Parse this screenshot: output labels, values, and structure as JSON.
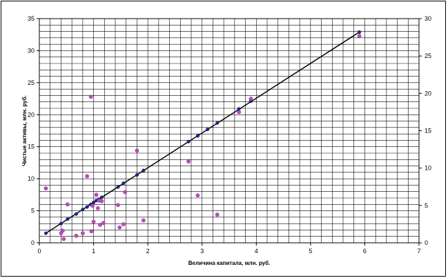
{
  "chart_data": {
    "type": "scatter",
    "xlabel": "Величина капитала, млн. руб.",
    "ylabel": "Чистые активы, млн. руб.",
    "xlim": [
      0,
      7
    ],
    "ylim": [
      0,
      35
    ],
    "y2lim": [
      0,
      30
    ],
    "x_ticks": [
      0,
      1,
      2,
      3,
      4,
      5,
      6,
      7
    ],
    "y_ticks": [
      0,
      5,
      10,
      15,
      20,
      25,
      30,
      35
    ],
    "y2_ticks": [
      0,
      5,
      10,
      15,
      20,
      25,
      30
    ],
    "grid": true,
    "colors": {
      "observed": "#cc44cc",
      "fitted": "#1a2a9a",
      "line": "#000000"
    },
    "series": [
      {
        "kind": "observed",
        "points": [
          [
            0.12,
            8.5
          ],
          [
            0.4,
            1.5
          ],
          [
            0.43,
            1.9
          ],
          [
            0.45,
            0.6
          ],
          [
            0.52,
            6.0
          ],
          [
            0.68,
            1.1
          ],
          [
            0.8,
            1.5
          ],
          [
            0.88,
            10.4
          ],
          [
            0.95,
            22.8
          ],
          [
            0.96,
            1.8
          ],
          [
            0.98,
            5.8
          ],
          [
            1.0,
            3.3
          ],
          [
            1.05,
            7.5
          ],
          [
            1.08,
            5.4
          ],
          [
            1.1,
            6.6
          ],
          [
            1.12,
            2.8
          ],
          [
            1.15,
            6.5
          ],
          [
            1.18,
            3.1
          ],
          [
            1.45,
            5.9
          ],
          [
            1.48,
            2.4
          ],
          [
            1.55,
            2.9
          ],
          [
            1.58,
            7.9
          ],
          [
            1.8,
            14.4
          ],
          [
            1.92,
            3.5
          ],
          [
            2.75,
            12.7
          ],
          [
            2.92,
            7.4
          ],
          [
            3.28,
            4.4
          ],
          [
            3.68,
            20.4
          ],
          [
            3.9,
            22.5
          ],
          [
            5.9,
            32.3
          ]
        ]
      },
      {
        "kind": "fitted",
        "points": [
          [
            0.12,
            1.5
          ],
          [
            0.4,
            3.0
          ],
          [
            0.52,
            3.7
          ],
          [
            0.68,
            4.5
          ],
          [
            0.8,
            5.2
          ],
          [
            0.88,
            5.6
          ],
          [
            0.95,
            6.0
          ],
          [
            1.0,
            6.3
          ],
          [
            1.05,
            6.6
          ],
          [
            1.1,
            6.8
          ],
          [
            1.15,
            7.1
          ],
          [
            1.45,
            8.7
          ],
          [
            1.55,
            9.3
          ],
          [
            1.8,
            10.6
          ],
          [
            1.92,
            11.3
          ],
          [
            2.75,
            15.8
          ],
          [
            2.92,
            16.7
          ],
          [
            3.1,
            17.7
          ],
          [
            3.28,
            18.7
          ],
          [
            3.68,
            20.9
          ],
          [
            3.9,
            22.1
          ],
          [
            5.9,
            32.9
          ]
        ]
      }
    ],
    "trendline": {
      "x1": 0.12,
      "x2": 5.9
    }
  }
}
